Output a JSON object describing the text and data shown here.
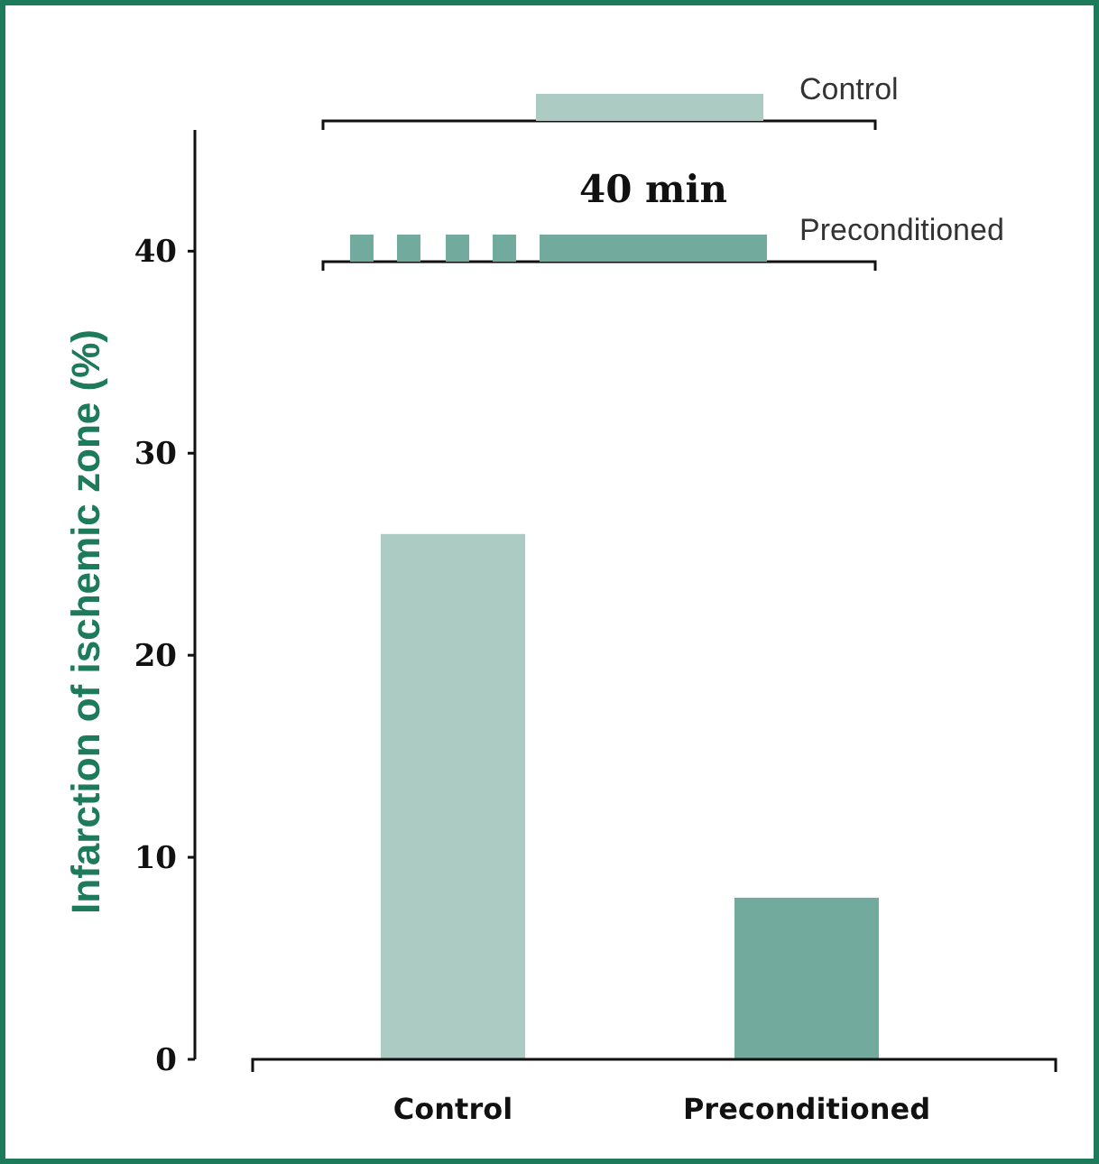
{
  "chart_data": {
    "type": "bar",
    "ylabel": "Infarction of ischemic zone (%)",
    "categories": [
      "Control",
      "Preconditioned"
    ],
    "values": [
      26,
      8
    ],
    "colors": [
      "#abcbc3",
      "#72aa9e"
    ],
    "ylim": [
      0,
      46
    ],
    "yticks": [
      0,
      10,
      20,
      30,
      40
    ],
    "grid": false,
    "annotations": [
      "Control",
      "40 min",
      "Preconditioned"
    ]
  }
}
